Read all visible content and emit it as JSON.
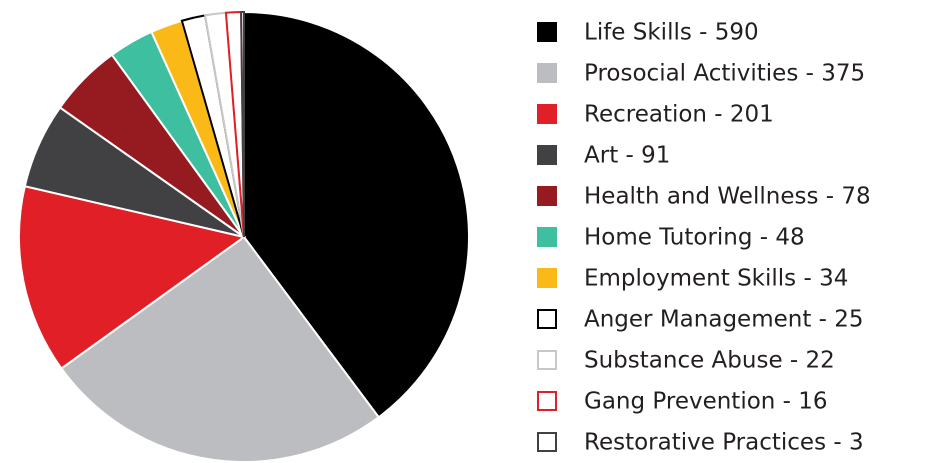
{
  "chart_data": {
    "type": "pie",
    "values": [
      590,
      375,
      201,
      91,
      78,
      48,
      34,
      25,
      22,
      16,
      3
    ],
    "value_labels": [
      "Life Skills - 590",
      "Prosocial Activities - 375",
      "Recreation - 201",
      "Art - 91",
      "Health and Wellness - 78",
      "Home Tutoring - 48",
      "Employment Skills - 34",
      "Anger Management - 25",
      "Substance Abuse - 22",
      "Gang Prevention - 16",
      "Restorative Practices - 3"
    ],
    "colors": [
      "#000000",
      "#bcbdc0",
      "#e01f26",
      "#414042",
      "#951b20",
      "#3dbfa0",
      "#fbb917",
      "#ffffff",
      "#ffffff",
      "#ffffff",
      "#ffffff"
    ],
    "edgecolors": [
      "#ffffff",
      "#ffffff",
      "#ffffff",
      "#ffffff",
      "#ffffff",
      "#ffffff",
      "#ffffff",
      "#000000",
      "#c8c8c8",
      "#e01f26",
      "#414042"
    ],
    "legend": "right"
  }
}
